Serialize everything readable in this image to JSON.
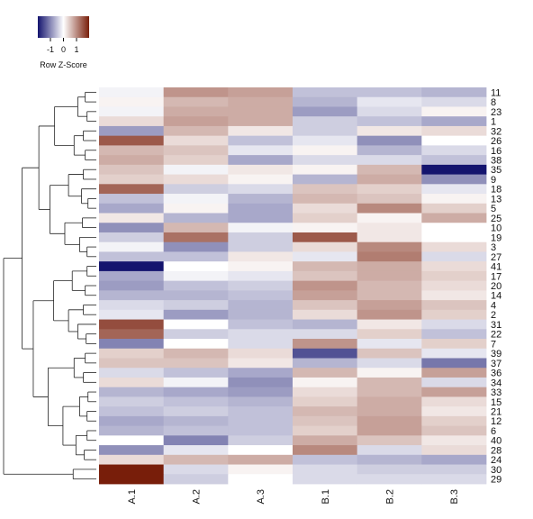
{
  "chart_data": {
    "type": "heatmap",
    "color_key": {
      "title": "Row Z-Score",
      "ticks": [
        "-1",
        "0",
        "1"
      ],
      "low_color": "#14146e",
      "mid_color": "#ffffff",
      "high_color": "#781e0a"
    },
    "columns": [
      "A.1",
      "A.2",
      "A.3",
      "B.1",
      "B.2",
      "B.3"
    ],
    "rows": [
      "11",
      "8",
      "23",
      "1",
      "32",
      "26",
      "16",
      "38",
      "35",
      "9",
      "18",
      "13",
      "5",
      "25",
      "10",
      "19",
      "3",
      "27",
      "41",
      "17",
      "20",
      "14",
      "4",
      "2",
      "31",
      "22",
      "7",
      "39",
      "37",
      "36",
      "34",
      "33",
      "15",
      "21",
      "12",
      "6",
      "40",
      "28",
      "24",
      "30",
      "29"
    ],
    "values": [
      [
        -0.1,
        0.9,
        0.8,
        -0.5,
        -0.5,
        -0.6
      ],
      [
        0.1,
        0.6,
        0.7,
        -0.6,
        -0.2,
        -0.3
      ],
      [
        -0.1,
        0.7,
        0.7,
        -0.8,
        -0.3,
        0.1
      ],
      [
        0.3,
        0.8,
        0.7,
        -0.4,
        -0.5,
        -0.7
      ],
      [
        -0.8,
        0.6,
        0.2,
        -0.4,
        0.2,
        0.3
      ],
      [
        1.4,
        0.3,
        -0.5,
        -0.2,
        -0.9,
        0.0
      ],
      [
        0.6,
        0.5,
        -0.2,
        0.1,
        -0.6,
        -0.3
      ],
      [
        0.7,
        0.4,
        -0.7,
        -0.3,
        -0.3,
        -0.5
      ],
      [
        0.5,
        -0.1,
        0.2,
        0.1,
        0.6,
        -1.9
      ],
      [
        0.4,
        0.3,
        0.1,
        -0.6,
        0.7,
        -0.9
      ],
      [
        1.3,
        -0.4,
        -0.3,
        0.5,
        0.4,
        -0.2
      ],
      [
        -0.5,
        -0.1,
        -0.6,
        0.6,
        0.5,
        0.1
      ],
      [
        -0.7,
        0.1,
        -0.7,
        0.3,
        1.0,
        0.4
      ],
      [
        0.2,
        -0.6,
        -0.7,
        0.4,
        0.1,
        0.7
      ],
      [
        -0.9,
        0.6,
        -0.1,
        0.1,
        0.2,
        0.0
      ],
      [
        -0.4,
        1.2,
        -0.4,
        1.4,
        0.2,
        0.0
      ],
      [
        -0.1,
        -0.9,
        -0.4,
        0.3,
        1.0,
        0.3
      ],
      [
        -0.5,
        -0.5,
        0.2,
        -0.2,
        1.1,
        -0.3
      ],
      [
        -1.9,
        0.0,
        0.1,
        0.6,
        0.7,
        0.3
      ],
      [
        -0.7,
        -0.1,
        -0.2,
        0.5,
        0.7,
        0.4
      ],
      [
        -0.8,
        -0.5,
        -0.4,
        0.9,
        0.6,
        0.3
      ],
      [
        -0.6,
        -0.6,
        -0.5,
        0.8,
        0.6,
        0.2
      ],
      [
        -0.3,
        -0.4,
        -0.6,
        0.5,
        0.8,
        0.5
      ],
      [
        -0.2,
        -0.8,
        -0.6,
        0.3,
        0.9,
        0.4
      ],
      [
        1.5,
        0.0,
        -0.5,
        -0.6,
        0.2,
        -0.3
      ],
      [
        1.3,
        -0.4,
        -0.3,
        -0.3,
        0.4,
        -0.5
      ],
      [
        -1.0,
        0.0,
        -0.3,
        0.9,
        -0.2,
        0.4
      ],
      [
        0.4,
        0.6,
        0.3,
        -1.4,
        0.5,
        -0.2
      ],
      [
        0.5,
        0.5,
        0.2,
        -0.6,
        -0.3,
        -1.1
      ],
      [
        -0.3,
        -0.5,
        -0.7,
        0.6,
        0.1,
        0.8
      ],
      [
        0.3,
        -0.1,
        -0.9,
        0.1,
        0.6,
        -0.3
      ],
      [
        -0.6,
        -0.7,
        -0.8,
        0.3,
        0.6,
        0.8
      ],
      [
        -0.4,
        -0.5,
        -0.6,
        0.4,
        0.7,
        0.3
      ],
      [
        -0.5,
        -0.4,
        -0.5,
        0.6,
        0.7,
        0.2
      ],
      [
        -0.7,
        -0.6,
        -0.5,
        0.5,
        0.8,
        0.4
      ],
      [
        -0.6,
        -0.5,
        -0.5,
        0.4,
        0.8,
        0.5
      ],
      [
        0.0,
        -1.0,
        -0.4,
        0.7,
        0.5,
        0.2
      ],
      [
        -0.9,
        -0.2,
        0.0,
        1.0,
        -0.3,
        0.3
      ],
      [
        0.3,
        0.6,
        0.7,
        -0.5,
        -0.6,
        -0.7
      ],
      [
        1.9,
        -0.3,
        0.1,
        -0.3,
        -0.4,
        -0.4
      ],
      [
        1.9,
        -0.4,
        0.0,
        -0.3,
        -0.3,
        -0.3
      ]
    ]
  }
}
